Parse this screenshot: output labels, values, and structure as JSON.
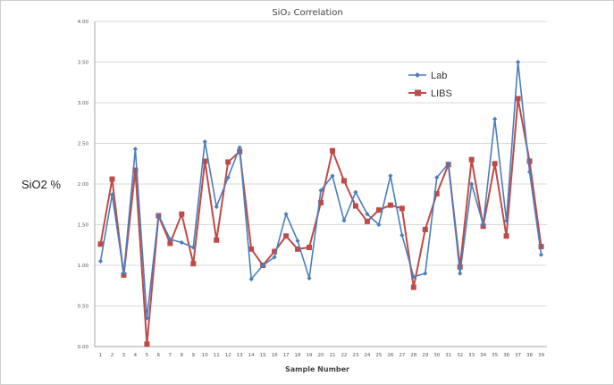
{
  "chart_data": {
    "type": "line",
    "title": "SiO₂ Correlation",
    "xlabel": "Sample Number",
    "ylabel": "SiO2 %",
    "ylim": [
      0,
      4
    ],
    "grid": true,
    "legend_position": "top-right",
    "y_ticks": [
      "0.00",
      "0.50",
      "1.00",
      "1.50",
      "2.00",
      "2.50",
      "3.00",
      "3.50",
      "4.00"
    ],
    "categories": [
      "1",
      "2",
      "3",
      "4",
      "5",
      "6",
      "7",
      "8",
      "9",
      "10",
      "11",
      "12",
      "13",
      "14",
      "15",
      "16",
      "17",
      "18",
      "19",
      "20",
      "21",
      "22",
      "23",
      "24",
      "25",
      "26",
      "27",
      "28",
      "29",
      "30",
      "31",
      "32",
      "33",
      "34",
      "35",
      "36",
      "37",
      "38",
      "39"
    ],
    "series": [
      {
        "name": "Lab",
        "color": "#4a7ebb",
        "marker": "diamond",
        "values": [
          1.05,
          1.87,
          0.9,
          2.43,
          0.35,
          1.62,
          1.32,
          1.28,
          1.22,
          2.52,
          1.72,
          2.08,
          2.45,
          0.83,
          1.0,
          1.1,
          1.63,
          1.3,
          0.84,
          1.92,
          2.1,
          1.55,
          1.9,
          1.63,
          1.5,
          2.1,
          1.37,
          0.86,
          0.9,
          2.08,
          2.25,
          0.9,
          2.0,
          1.5,
          2.8,
          1.55,
          3.5,
          2.15,
          1.13
        ]
      },
      {
        "name": "LIBS",
        "color": "#be4b48",
        "marker": "square",
        "values": [
          1.26,
          2.06,
          0.88,
          2.17,
          0.03,
          1.61,
          1.27,
          1.63,
          1.02,
          2.28,
          1.31,
          2.27,
          2.4,
          1.2,
          1.0,
          1.17,
          1.36,
          1.2,
          1.22,
          1.77,
          2.41,
          2.04,
          1.73,
          1.54,
          1.68,
          1.74,
          1.7,
          0.73,
          1.44,
          1.88,
          2.24,
          0.98,
          2.3,
          1.48,
          2.25,
          1.36,
          3.05,
          2.28,
          1.23
        ]
      }
    ]
  }
}
